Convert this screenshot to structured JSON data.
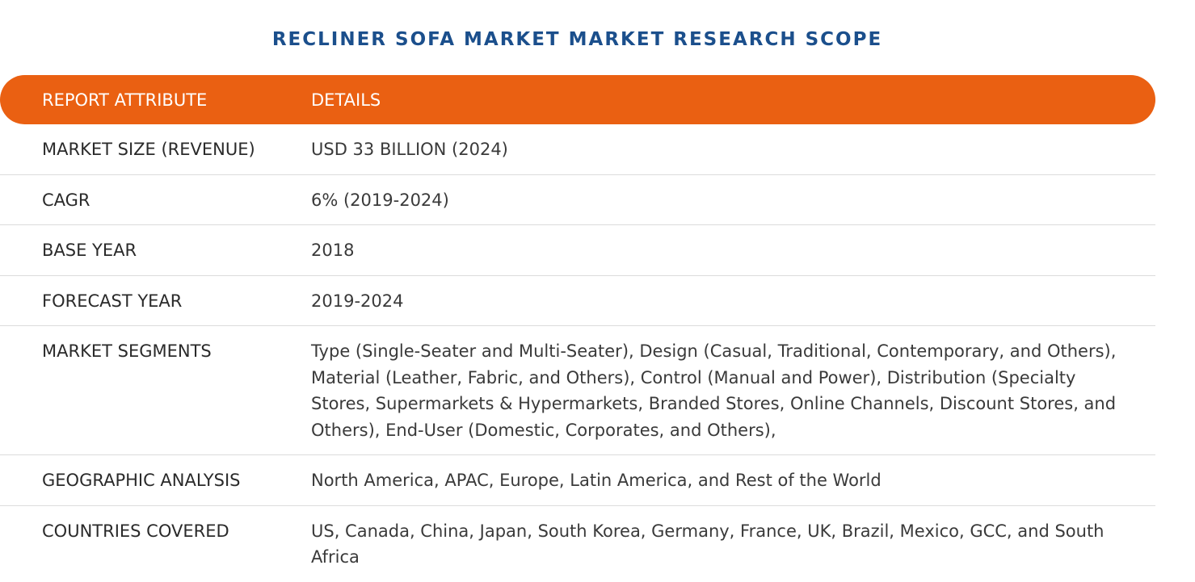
{
  "title": "RECLINER SOFA MARKET MARKET RESEARCH SCOPE",
  "colors": {
    "title": "#1b4f8c",
    "header_bg": "#ea6012",
    "header_text": "#ffffff",
    "row_divider": "#dcdcdc"
  },
  "table": {
    "headers": {
      "attribute": "REPORT ATTRIBUTE",
      "details": "DETAILS"
    },
    "rows": [
      {
        "attribute": "MARKET SIZE (REVENUE)",
        "details": "USD 33 BILLION (2024)"
      },
      {
        "attribute": "CAGR",
        "details": "6% (2019-2024)"
      },
      {
        "attribute": "BASE YEAR",
        "details": "2018"
      },
      {
        "attribute": "FORECAST YEAR",
        "details": "2019-2024"
      },
      {
        "attribute": "MARKET SEGMENTS",
        "details": "Type (Single-Seater and Multi-Seater), Design (Casual, Traditional, Contemporary, and Others), Material (Leather, Fabric, and Others), Control (Manual and Power), Distribution (Specialty Stores, Supermarkets & Hypermarkets, Branded Stores, Online Channels, Discount Stores, and Others), End-User (Domestic, Corporates, and Others),"
      },
      {
        "attribute": "GEOGRAPHIC ANALYSIS",
        "details": "North America, APAC, Europe, Latin America, and Rest of the World"
      },
      {
        "attribute": "COUNTRIES COVERED",
        "details": "US, Canada, China, Japan, South Korea, Germany, France, UK, Brazil, Mexico, GCC, and South Africa"
      }
    ]
  }
}
